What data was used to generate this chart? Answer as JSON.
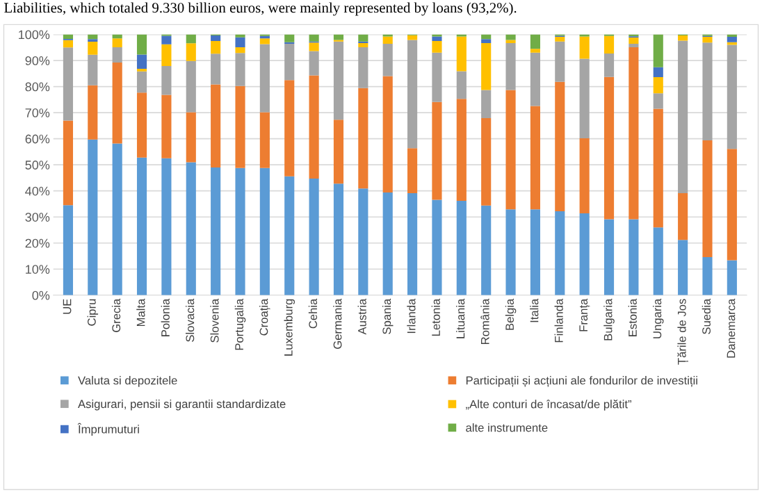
{
  "chart_data": {
    "type": "bar",
    "stacked": true,
    "annotations": [
      "Liabilities, which totaled 9.330 billion euros, were mainly represented by loans (93,2%)."
    ],
    "categories": [
      "UE",
      "Cipru",
      "Grecia",
      "Malta",
      "Polonia",
      "Slovacia",
      "Slovenia",
      "Portugalia",
      "Croația",
      "Luxemburg",
      "Cehia",
      "Germania",
      "Austria",
      "Spania",
      "Irlanda",
      "Letonia",
      "Lituania",
      "România",
      "Belgia",
      "Italia",
      "Finlanda",
      "Franța",
      "Bulgaria",
      "Estonia",
      "Ungaria",
      "Țările de Jos",
      "Suedia",
      "Danemarca"
    ],
    "series": [
      {
        "name": "Valuta si depozitele",
        "color": "#5b9bd5",
        "values": [
          34.5,
          59.7,
          58.2,
          52.8,
          52.5,
          51,
          49,
          48.8,
          48.8,
          45.6,
          44.7,
          42.8,
          40.9,
          39.4,
          39.1,
          36.6,
          36.2,
          34.4,
          32.9,
          32.9,
          32.2,
          31.4,
          29.1,
          29.1,
          26,
          21.2,
          14.6,
          13.4
        ]
      },
      {
        "name": "Participații și acțiuni ale fondurilor de investiții",
        "color": "#ed7d31",
        "values": [
          32.5,
          20.8,
          31,
          24.9,
          24.3,
          19.2,
          31.8,
          31.4,
          21.4,
          36.9,
          39.6,
          24.5,
          38.5,
          44.6,
          17.3,
          37.5,
          39.1,
          33.5,
          45.8,
          39.7,
          49.6,
          28.8,
          54.6,
          66,
          45.5,
          17.9,
          44.8,
          42.7
        ]
      },
      {
        "name": "Asigurari, pensii si garantii standardizate",
        "color": "#a5a5a5",
        "values": [
          28,
          11.7,
          5.9,
          8.1,
          11.1,
          19.6,
          11.8,
          12.7,
          26.1,
          13.9,
          9.3,
          30,
          15.7,
          12.4,
          41.5,
          18.9,
          10.6,
          10.8,
          18,
          20.4,
          15.5,
          30.5,
          9,
          1.3,
          5.9,
          58.5,
          37.5,
          39.9
        ]
      },
      {
        "name": "„Alte conturi de încasat/de plătit”",
        "color": "#ffc000",
        "values": [
          2.8,
          5,
          3.4,
          1,
          8.3,
          6.8,
          4.9,
          2.2,
          2.2,
          0,
          3.3,
          0.6,
          1.6,
          2.8,
          1.8,
          4.5,
          13.3,
          18,
          1.2,
          1.5,
          1.8,
          8.5,
          6.7,
          2.4,
          6.2,
          2,
          2.2,
          1
        ]
      },
      {
        "name": "Împrumuturi",
        "color": "#4472c4",
        "values": [
          0.5,
          1,
          0,
          5.5,
          3.3,
          0,
          2.1,
          3.8,
          0.9,
          0.6,
          0.4,
          0,
          0.6,
          0,
          0,
          1.7,
          0,
          1.5,
          0,
          0,
          0.4,
          0,
          0,
          0.5,
          3.8,
          0,
          0.3,
          2.1
        ]
      },
      {
        "name": "alte instrumente",
        "color": "#70ad47",
        "values": [
          1.7,
          1.8,
          1.5,
          7.7,
          0.5,
          3.4,
          0.4,
          1.1,
          0.6,
          3,
          2.7,
          2.1,
          2.7,
          0.8,
          0.3,
          0.8,
          0.8,
          1.8,
          2.1,
          5.5,
          0.5,
          0.8,
          0.6,
          0.7,
          12.6,
          0.4,
          0.6,
          0.9
        ]
      }
    ],
    "ylim": [
      0,
      100
    ],
    "yticks": [
      {
        "value": 0,
        "label": "0%"
      },
      {
        "value": 10,
        "label": "10%"
      },
      {
        "value": 20,
        "label": "20%"
      },
      {
        "value": 30,
        "label": "30%"
      },
      {
        "value": 40,
        "label": "40%"
      },
      {
        "value": 50,
        "label": "50%"
      },
      {
        "value": 60,
        "label": "60%"
      },
      {
        "value": 70,
        "label": "70%"
      },
      {
        "value": 80,
        "label": "80%"
      },
      {
        "value": 90,
        "label": "90%"
      },
      {
        "value": 100,
        "label": "100%"
      }
    ],
    "grid": "y",
    "legend": "bottom"
  }
}
